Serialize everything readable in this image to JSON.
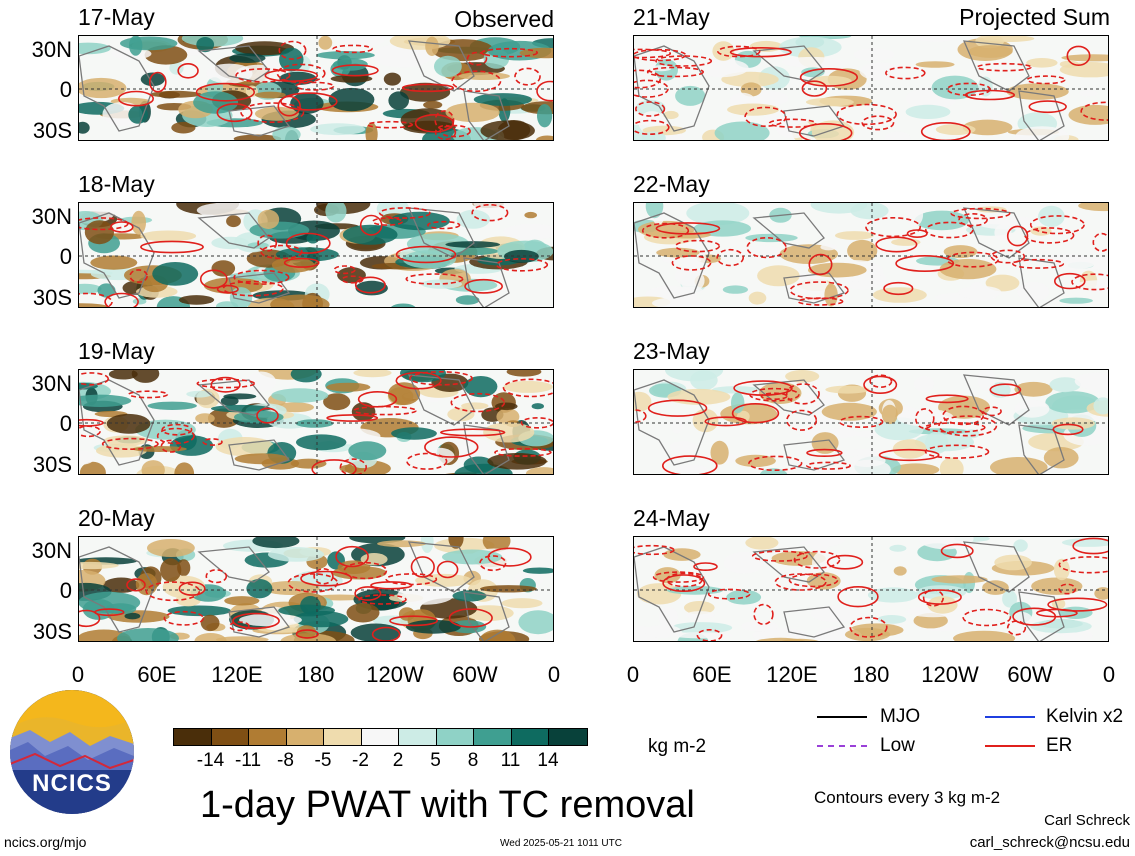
{
  "panels_left": {
    "header_right": "Observed",
    "dates": [
      "17-May",
      "18-May",
      "19-May",
      "20-May"
    ]
  },
  "panels_right": {
    "header_right": "Projected Sum",
    "dates": [
      "21-May",
      "22-May",
      "23-May",
      "24-May"
    ]
  },
  "y_ticks": [
    "30N",
    "0",
    "30S"
  ],
  "x_ticks": [
    "0",
    "60E",
    "120E",
    "180",
    "120W",
    "60W",
    "0"
  ],
  "colorbar": {
    "colors": [
      "#4a2e0a",
      "#7f4f14",
      "#b07c33",
      "#d7b06e",
      "#efdcae",
      "#f7f7f7",
      "#cdece6",
      "#8fd2c6",
      "#3f9f91",
      "#0e6b60",
      "#08413a"
    ],
    "labels": [
      "-14",
      "-11",
      "-8",
      "-5",
      "-2",
      "2",
      "5",
      "8",
      "11",
      "14"
    ],
    "unit": "kg m-2"
  },
  "title": "1-day PWAT with TC removal",
  "legend": {
    "mjo": "MJO",
    "kelvin": "Kelvin x2",
    "low": "Low",
    "er": "ER",
    "contours": "Contours every 3 kg m-2"
  },
  "logo_text": "NCICS",
  "footer": {
    "site": "ncics.org/mjo",
    "timestamp": "Wed 2025-05-21 1011 UTC",
    "author": "Carl Schreck",
    "email": "carl_schreck@ncsu.edu"
  }
}
